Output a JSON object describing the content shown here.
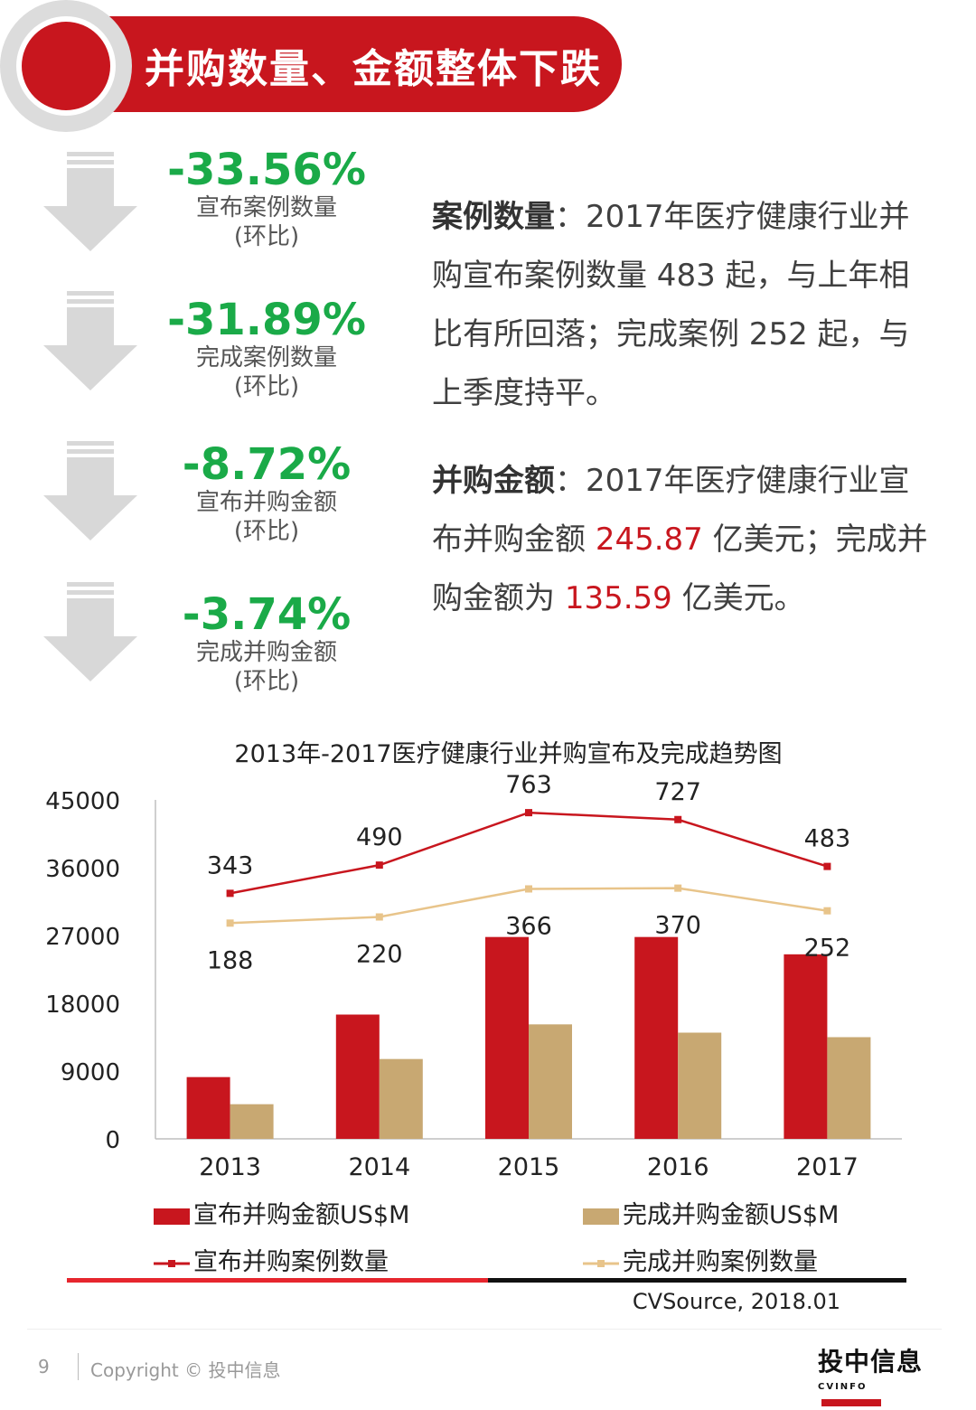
{
  "header": {
    "title": "并购数量、金额整体下跌"
  },
  "stats": [
    {
      "pct": "-33.56%",
      "label": "宣布案例数量",
      "sub": "(环比)"
    },
    {
      "pct": "-31.89%",
      "label": "完成案例数量",
      "sub": "(环比)"
    },
    {
      "pct": "-8.72%",
      "label": "宣布并购金额",
      "sub": "(环比)"
    },
    {
      "pct": "-3.74%",
      "label": "完成并购金额",
      "sub": "(环比)"
    }
  ],
  "para1": {
    "keyword": "案例数量",
    "sep": "：",
    "text": "2017年医疗健康行业并购宣布案例数量 483 起，与上年相比有所回落；完成案例 252 起，与上季度持平。"
  },
  "para2": {
    "keyword": "并购金额",
    "sep": "：",
    "text1": "2017年医疗健康行业宣布并购金额 ",
    "value1": "245.87",
    "text2": " 亿美元；完成并购金额为 ",
    "value2": "135.59",
    "text3": " 亿美元。"
  },
  "colors": {
    "red": "#c8161e",
    "tan": "#c8a872",
    "green": "#1aaa48",
    "line_red": "#c8161e",
    "line_tan": "#e8c48a"
  },
  "chart_data": {
    "type": "bar",
    "title": "2013年-2017医疗健康行业并购宣布及完成趋势图",
    "categories": [
      "2013",
      "2014",
      "2015",
      "2016",
      "2017"
    ],
    "y_ticks": [
      "45000",
      "36000",
      "27000",
      "18000",
      "9000",
      "0"
    ],
    "ylim": [
      0,
      45000
    ],
    "series": [
      {
        "name": "宣布并购金额US$M",
        "type": "bar",
        "values": [
          8200,
          16500,
          26800,
          26800,
          24500
        ]
      },
      {
        "name": "完成并购金额US$M",
        "type": "bar",
        "values": [
          4600,
          10600,
          15200,
          14100,
          13500
        ]
      },
      {
        "name": "宣布并购案例数量",
        "type": "line",
        "labels": [
          "343",
          "490",
          "763",
          "727",
          "483"
        ]
      },
      {
        "name": "完成并购案例数量",
        "type": "line",
        "labels": [
          "188",
          "220",
          "366",
          "370",
          "252"
        ]
      }
    ],
    "grid": false,
    "legend_position": "bottom"
  },
  "source": "CVSource, 2018.01",
  "footer": {
    "page": "9",
    "copyright": "Copyright © 投中信息"
  },
  "logo": {
    "main": "投中信息",
    "sub": "CVINFO"
  }
}
